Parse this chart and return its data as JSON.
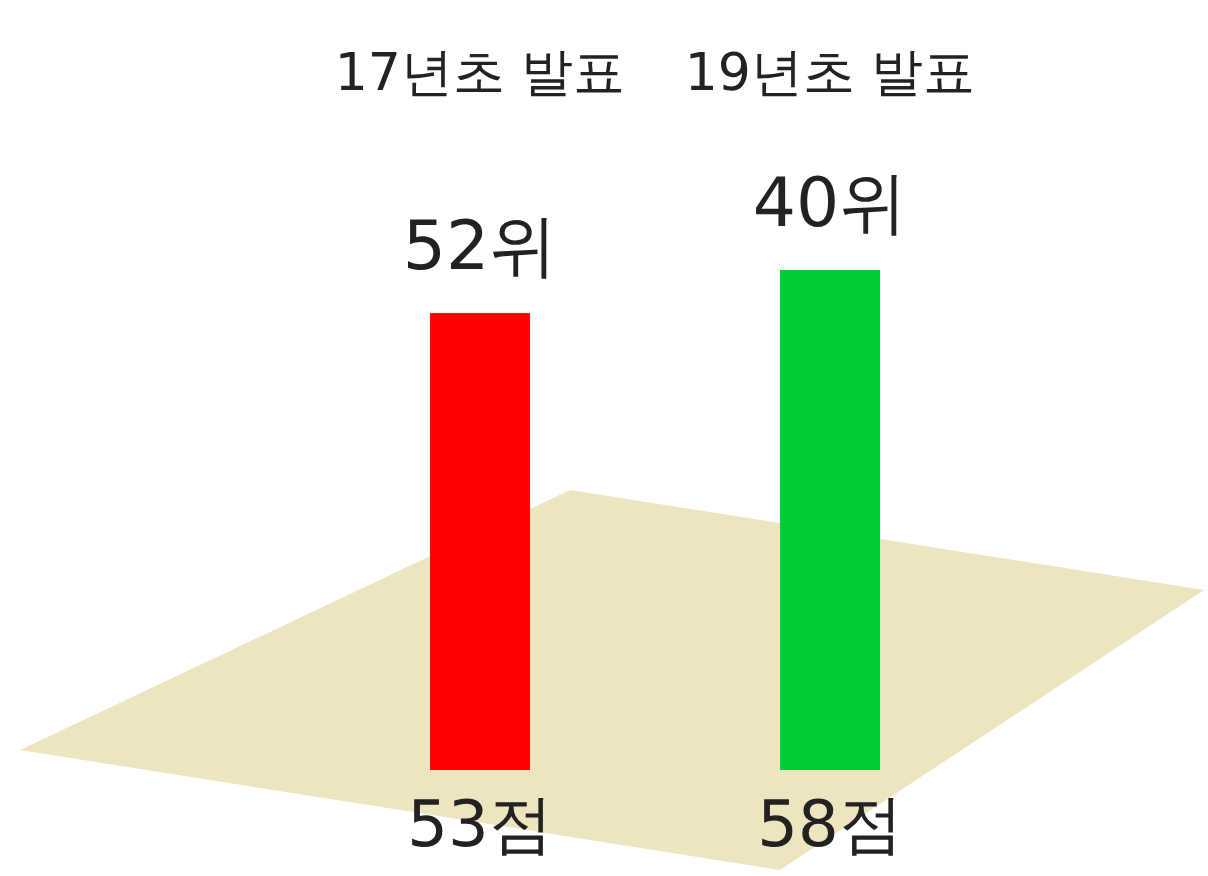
{
  "chart_data": {
    "type": "bar",
    "categories": [
      "17년초 발표",
      "19년초 발표"
    ],
    "values": [
      53,
      58
    ],
    "colors": [
      "#ff0000",
      "#00cc33"
    ],
    "value_labels": [
      "53점",
      "58점"
    ],
    "annotations": [
      "52위",
      "40위"
    ]
  }
}
